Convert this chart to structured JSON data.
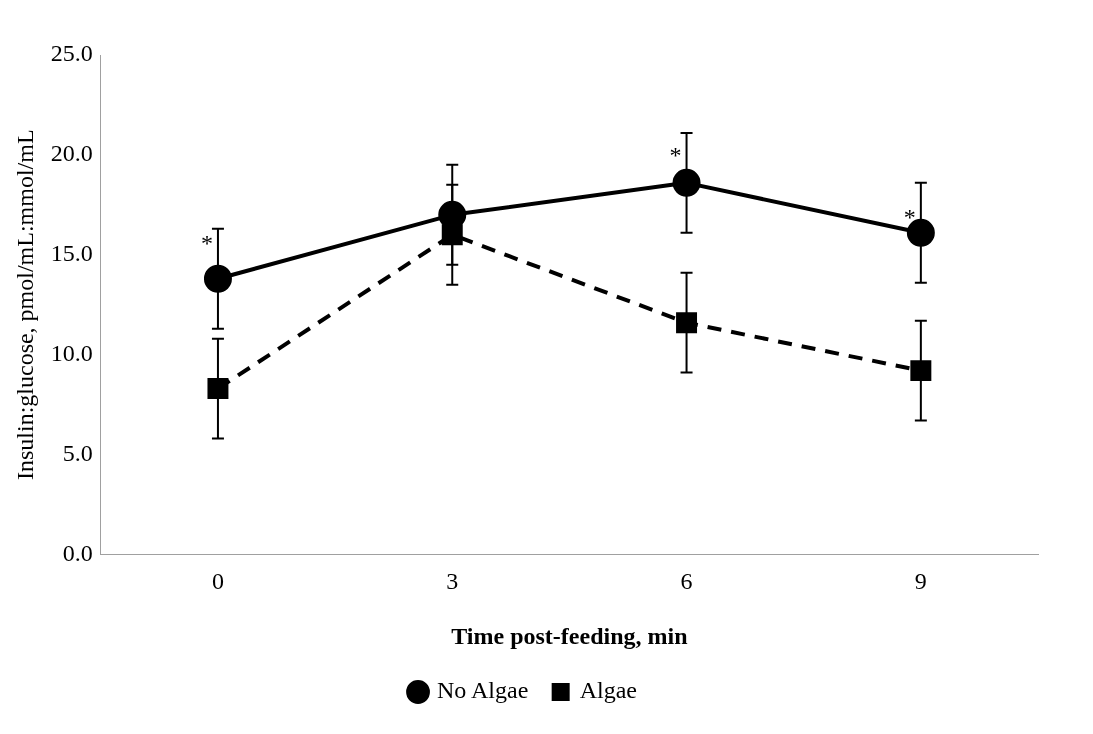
{
  "chart_data": {
    "type": "line",
    "xlabel": "Time post-feeding, min",
    "ylabel": "Insulin:glucose, pmol/mL:mmol/mL",
    "categories": [
      "0",
      "3",
      "6",
      "9"
    ],
    "series": [
      {
        "name": "No Algae",
        "color": "#000000",
        "values": [
          13.8,
          17.0,
          18.6,
          16.1
        ],
        "errors": [
          2.5,
          2.5,
          2.5,
          2.5
        ],
        "marker": "circle",
        "line_style": "solid"
      },
      {
        "name": "Algae",
        "color": "#000000",
        "values": [
          8.3,
          16.0,
          11.6,
          9.2
        ],
        "errors": [
          2.5,
          2.5,
          2.5,
          2.5
        ],
        "marker": "square",
        "line_style": "dashed"
      }
    ],
    "ylim": [
      0,
      25
    ],
    "yticks": [
      {
        "value": 0,
        "label": "0.0"
      },
      {
        "value": 5,
        "label": "5.0"
      },
      {
        "value": 10,
        "label": "10.0"
      },
      {
        "value": 15,
        "label": "15.0"
      },
      {
        "value": 20,
        "label": "20.0"
      },
      {
        "value": 25,
        "label": "25.0"
      }
    ],
    "annotations": [
      {
        "text": "*",
        "x": "0",
        "y": 15.7
      },
      {
        "text": "*",
        "x": "6",
        "y": 20.1
      },
      {
        "text": "*",
        "x": "9",
        "y": 17.0
      }
    ],
    "grid": false,
    "legend": "bottom"
  }
}
